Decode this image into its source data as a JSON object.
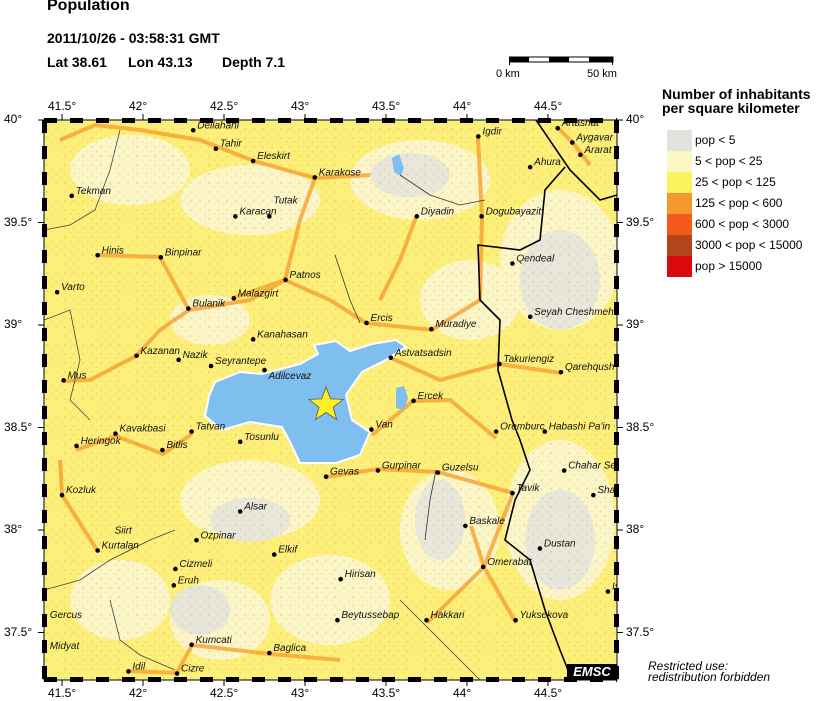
{
  "header": {
    "title": "Population",
    "datetime": "2011/10/26 - 03:58:31 GMT",
    "lat_label": "Lat 38.61",
    "lon_label": "Lon  43.13",
    "depth_label": "Depth  7.1"
  },
  "scale_bar": {
    "start_label": "0 km",
    "end_label": "50 km"
  },
  "axes": {
    "lon_ticks": [
      "41.5°",
      "42°",
      "42.5°",
      "43°",
      "43.5°",
      "44°",
      "44.5°"
    ],
    "lat_ticks": [
      "40°",
      "39.5°",
      "39°",
      "38.5°",
      "38°",
      "37.5°"
    ]
  },
  "epicenter": {
    "lat": 38.61,
    "lon": 43.13,
    "color": "#ffee22"
  },
  "legend": {
    "title_line1": "Number of inhabitants",
    "title_line2": "per square kilometer",
    "items": [
      {
        "label": "pop < 5",
        "color": "#e2e2de"
      },
      {
        "label": "5 < pop < 25",
        "color": "#fbf7c0"
      },
      {
        "label": "25 < pop < 125",
        "color": "#fcf35c"
      },
      {
        "label": "125 < pop < 600",
        "color": "#f6982e"
      },
      {
        "label": "600 < pop < 3000",
        "color": "#f45a1c"
      },
      {
        "label": "3000 < pop < 15000",
        "color": "#b2461a"
      },
      {
        "label": "pop > 15000",
        "color": "#d9090c"
      }
    ]
  },
  "water_color": "#7fbff0",
  "logo": "EMSC",
  "footer": {
    "line1": "Restricted use:",
    "line2": "redistribution forbidden"
  },
  "cities": [
    {
      "name": "Dellahani",
      "lon": 42.31,
      "lat": 39.95
    },
    {
      "name": "Tahir",
      "lon": 42.45,
      "lat": 39.86
    },
    {
      "name": "Eleskirt",
      "lon": 42.68,
      "lat": 39.8
    },
    {
      "name": "Karakose",
      "lon": 43.06,
      "lat": 39.72
    },
    {
      "name": "Tekman",
      "lon": 41.56,
      "lat": 39.63
    },
    {
      "name": "Karacan",
      "lon": 42.57,
      "lat": 39.53
    },
    {
      "name": "Tutak",
      "lon": 42.78,
      "lat": 39.53
    },
    {
      "name": "Hinis",
      "lon": 41.72,
      "lat": 39.34
    },
    {
      "name": "Binpinar",
      "lon": 42.11,
      "lat": 39.33
    },
    {
      "name": "Patnos",
      "lon": 42.88,
      "lat": 39.22
    },
    {
      "name": "Varto",
      "lon": 41.47,
      "lat": 39.16
    },
    {
      "name": "Malazgirt",
      "lon": 42.56,
      "lat": 39.13
    },
    {
      "name": "Bulanik",
      "lon": 42.28,
      "lat": 39.08
    },
    {
      "name": "Kanahasan",
      "lon": 42.68,
      "lat": 38.93
    },
    {
      "name": "Kazanan",
      "lon": 41.96,
      "lat": 38.85
    },
    {
      "name": "Nazik",
      "lon": 42.22,
      "lat": 38.83
    },
    {
      "name": "Seyrantepe",
      "lon": 42.42,
      "lat": 38.8
    },
    {
      "name": "Adilcevaz",
      "lon": 42.75,
      "lat": 38.78
    },
    {
      "name": "Mus",
      "lon": 41.51,
      "lat": 38.73
    },
    {
      "name": "Igdir",
      "lon": 44.07,
      "lat": 39.92
    },
    {
      "name": "Artashat",
      "lon": 44.56,
      "lat": 39.96
    },
    {
      "name": "Aygavar",
      "lon": 44.65,
      "lat": 39.89
    },
    {
      "name": "Ararat",
      "lon": 44.7,
      "lat": 39.83
    },
    {
      "name": "Ahura",
      "lon": 44.39,
      "lat": 39.77
    },
    {
      "name": "Diyadin",
      "lon": 43.69,
      "lat": 39.53
    },
    {
      "name": "Dogubayazit",
      "lon": 44.09,
      "lat": 39.53
    },
    {
      "name": "Qendeal",
      "lon": 44.28,
      "lat": 39.3
    },
    {
      "name": "Seyah Cheshmeh",
      "lon": 44.39,
      "lat": 39.04
    },
    {
      "name": "Ercis",
      "lon": 43.38,
      "lat": 39.01
    },
    {
      "name": "Muradiye",
      "lon": 43.78,
      "lat": 38.98
    },
    {
      "name": "Astvatsadsin",
      "lon": 43.53,
      "lat": 38.84
    },
    {
      "name": "Takuriengiz",
      "lon": 44.2,
      "lat": 38.81
    },
    {
      "name": "Qarehqush",
      "lon": 44.58,
      "lat": 38.77
    },
    {
      "name": "Kavakbasi",
      "lon": 41.83,
      "lat": 38.47
    },
    {
      "name": "Tatvan",
      "lon": 42.3,
      "lat": 38.48
    },
    {
      "name": "Heringok",
      "lon": 41.59,
      "lat": 38.41
    },
    {
      "name": "Tosunlu",
      "lon": 42.6,
      "lat": 38.43
    },
    {
      "name": "Bitlis",
      "lon": 42.12,
      "lat": 38.39
    },
    {
      "name": "Gevas",
      "lon": 43.13,
      "lat": 38.26
    },
    {
      "name": "Kozluk",
      "lon": 41.5,
      "lat": 38.17
    },
    {
      "name": "Alsar",
      "lon": 42.6,
      "lat": 38.09
    },
    {
      "name": "Ozpinar",
      "lon": 42.33,
      "lat": 37.95
    },
    {
      "name": "Kurtalan",
      "lon": 41.72,
      "lat": 37.9
    },
    {
      "name": "Elkif",
      "lon": 42.81,
      "lat": 37.88
    },
    {
      "name": "Cizmeli",
      "lon": 42.2,
      "lat": 37.81
    },
    {
      "name": "Eruh",
      "lon": 42.19,
      "lat": 37.73
    },
    {
      "name": "Kumcati",
      "lon": 42.3,
      "lat": 37.44
    },
    {
      "name": "Baglica",
      "lon": 42.78,
      "lat": 37.4
    },
    {
      "name": "Idil",
      "lon": 41.91,
      "lat": 37.31
    },
    {
      "name": "Cizre",
      "lon": 42.21,
      "lat": 37.3
    },
    {
      "name": "Ercek",
      "lon": 43.67,
      "lat": 38.63
    },
    {
      "name": "Van",
      "lon": 43.41,
      "lat": 38.49
    },
    {
      "name": "Oremburc",
      "lon": 44.18,
      "lat": 38.48
    },
    {
      "name": "Habashi Pa'in",
      "lon": 44.48,
      "lat": 38.48
    },
    {
      "name": "Gurpinar",
      "lon": 43.45,
      "lat": 38.29
    },
    {
      "name": "Guzelsu",
      "lon": 43.82,
      "lat": 38.28
    },
    {
      "name": "Chahar Se",
      "lon": 44.6,
      "lat": 38.29
    },
    {
      "name": "Tavik",
      "lon": 44.28,
      "lat": 38.18
    },
    {
      "name": "Sha",
      "lon": 44.78,
      "lat": 38.17
    },
    {
      "name": "Baskale",
      "lon": 43.99,
      "lat": 38.02
    },
    {
      "name": "Dustan",
      "lon": 44.45,
      "lat": 37.91
    },
    {
      "name": "Omerabat",
      "lon": 44.1,
      "lat": 37.82
    },
    {
      "name": "Hirisan",
      "lon": 43.22,
      "lat": 37.76
    },
    {
      "name": "Is",
      "lon": 44.87,
      "lat": 37.7
    },
    {
      "name": "Beytussebap",
      "lon": 43.2,
      "lat": 37.56
    },
    {
      "name": "Hakkari",
      "lon": 43.75,
      "lat": 37.56
    },
    {
      "name": "Yuksekova",
      "lon": 44.3,
      "lat": 37.56
    }
  ],
  "labels_only": [
    {
      "name": "Siirt",
      "lon": 41.8,
      "lat": 37.93
    },
    {
      "name": "Gercus",
      "lon": 41.4,
      "lat": 37.57
    },
    {
      "name": "Midyat",
      "lon": 41.4,
      "lat": 37.42
    }
  ]
}
